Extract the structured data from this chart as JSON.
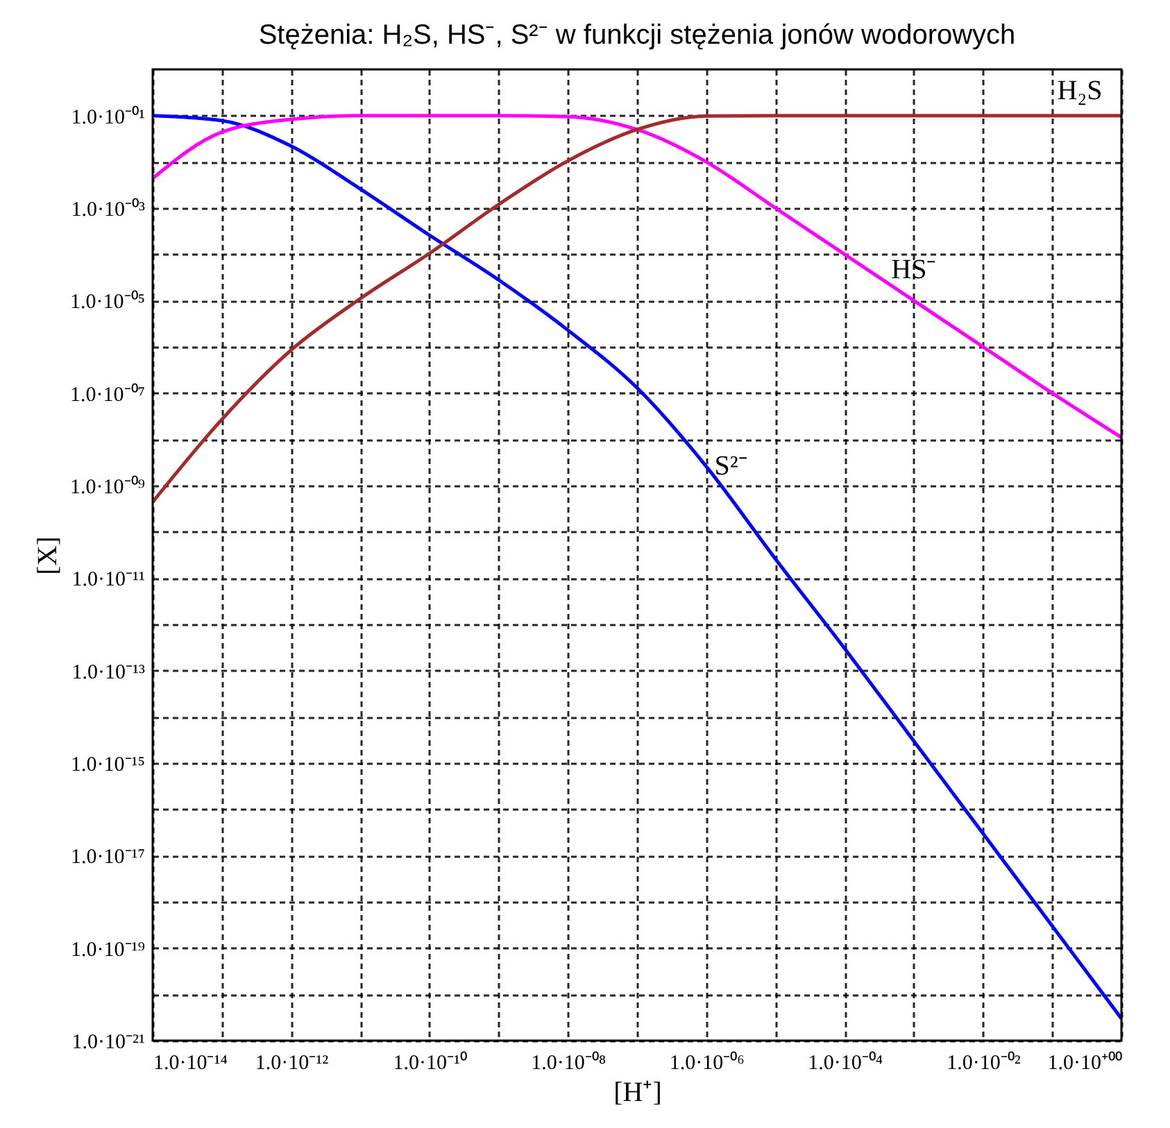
{
  "chart_data": {
    "type": "line",
    "title": "Stężenia: H₂S, HS⁻, S²⁻ w funkcji  stężenia jonów wodorowych",
    "xlabel": "[H⁺]",
    "ylabel": "[X]",
    "log": "xy",
    "grid": true,
    "marker": "none",
    "line_style": "solid",
    "x": [
      1e-14,
      1e-13,
      1e-12,
      1e-11,
      1e-10,
      1e-09,
      1e-08,
      1e-07,
      1e-06,
      1e-05,
      0.0001,
      0.001,
      0.01,
      0.1,
      1
    ],
    "series": [
      {
        "name": "S²⁻",
        "color": "#0000ff",
        "values": [
          0.1,
          0.078,
          0.022,
          0.0026,
          0.00026,
          2.8e-05,
          2.3e-06,
          1.3e-07,
          2.6e-09,
          2.6e-11,
          3e-13,
          3e-15,
          3e-17,
          3e-19,
          3e-21
        ]
      },
      {
        "name": "HS⁻",
        "color": "#ff00ff",
        "values": [
          0.0044,
          0.044,
          0.083,
          0.1,
          0.1,
          0.1,
          0.095,
          0.05,
          0.01,
          0.001,
          0.0001,
          1e-05,
          1e-06,
          1e-07,
          1.1e-08
        ]
      },
      {
        "name": "H₂S",
        "color": "#a52a2a",
        "values": [
          4.4e-10,
          2.7e-08,
          8.5e-07,
          1.1e-05,
          0.000105,
          0.0012,
          0.0105,
          0.05,
          0.098,
          0.1,
          0.1,
          0.1,
          0.1,
          0.1,
          0.1
        ]
      }
    ],
    "xlim": [
      1e-14,
      1
    ],
    "xticks": [
      {
        "value": 1e-14,
        "label": "1.0·10⁻¹⁴"
      },
      {
        "value": 1e-13,
        "label": null
      },
      {
        "value": 1e-12,
        "label": "1.0·10⁻¹²"
      },
      {
        "value": 1e-11,
        "label": null
      },
      {
        "value": 1e-10,
        "label": "1.0·10⁻¹⁰"
      },
      {
        "value": 1e-09,
        "label": null
      },
      {
        "value": 1e-08,
        "label": "1.0·10⁻⁰⁸"
      },
      {
        "value": 1e-07,
        "label": null
      },
      {
        "value": 1e-06,
        "label": "1.0·10⁻⁰⁶"
      },
      {
        "value": 1e-05,
        "label": null
      },
      {
        "value": 0.0001,
        "label": "1.0·10⁻⁰⁴"
      },
      {
        "value": 0.001,
        "label": null
      },
      {
        "value": 0.01,
        "label": "1.0·10⁻⁰²"
      },
      {
        "value": 0.1,
        "label": null
      },
      {
        "value": 1,
        "label": "1.0·10⁺⁰⁰"
      }
    ],
    "ylim": [
      1e-21,
      1
    ],
    "yticks": [
      {
        "value": 1e-21,
        "label": "1.0·10⁻²¹"
      },
      {
        "value": 1e-20,
        "label": null
      },
      {
        "value": 1e-19,
        "label": "1.0·10⁻¹⁹"
      },
      {
        "value": 1e-18,
        "label": null
      },
      {
        "value": 1e-17,
        "label": "1.0·10⁻¹⁷"
      },
      {
        "value": 1e-16,
        "label": null
      },
      {
        "value": 1e-15,
        "label": "1.0·10⁻¹⁵"
      },
      {
        "value": 1e-14,
        "label": null
      },
      {
        "value": 1e-13,
        "label": "1.0·10⁻¹³"
      },
      {
        "value": 1e-12,
        "label": null
      },
      {
        "value": 1e-11,
        "label": "1.0·10⁻¹¹"
      },
      {
        "value": 1e-10,
        "label": null
      },
      {
        "value": 1e-09,
        "label": "1.0·10⁻⁰⁹"
      },
      {
        "value": 1e-08,
        "label": null
      },
      {
        "value": 1e-07,
        "label": "1.0·10⁻⁰⁷"
      },
      {
        "value": 1e-06,
        "label": null
      },
      {
        "value": 1e-05,
        "label": "1.0·10⁻⁰⁵"
      },
      {
        "value": 0.0001,
        "label": null
      },
      {
        "value": 0.001,
        "label": "1.0·10⁻⁰³"
      },
      {
        "value": 0.01,
        "label": null
      },
      {
        "value": 0.1,
        "label": "1.0·10⁻⁰¹"
      }
    ]
  }
}
